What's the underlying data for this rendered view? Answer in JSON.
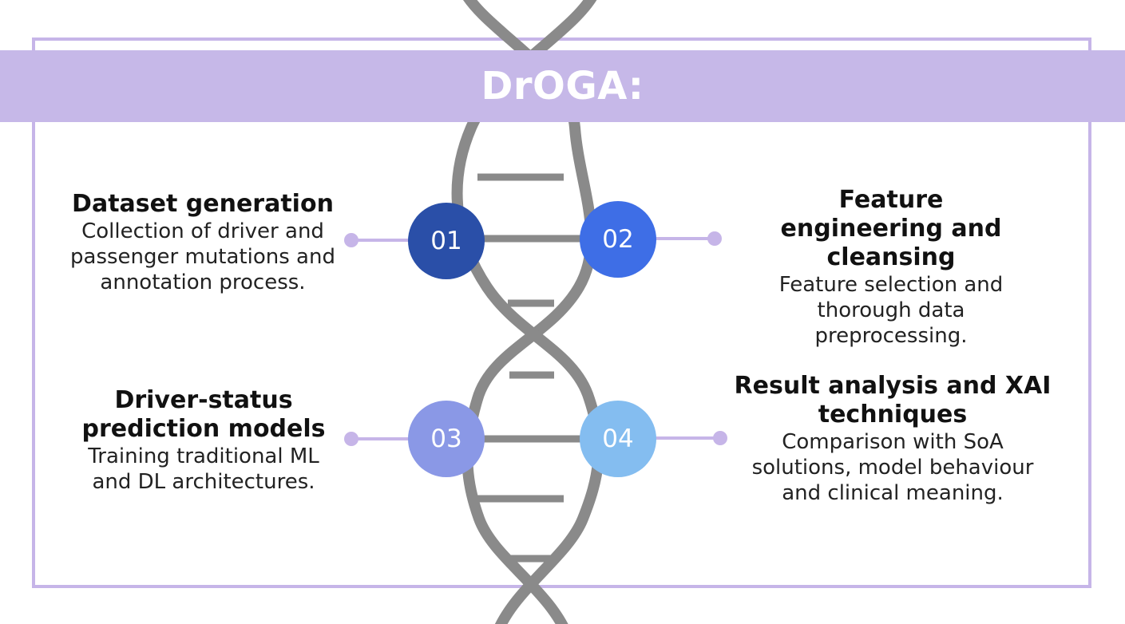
{
  "title": "DrOGA:",
  "colors": {
    "frame": "#c6b5e8",
    "banner": "#c6b8e8",
    "helix": "#8a8a8a",
    "step_01": "#2a4fa8",
    "step_02": "#3e6ee6",
    "step_03": "#8a98e6",
    "step_04": "#84bdf0"
  },
  "steps": [
    {
      "number": "01",
      "heading": "Dataset generation",
      "description": "Collection of driver and passenger mutations and annotation process."
    },
    {
      "number": "02",
      "heading": "Feature engineering and cleansing",
      "description": "Feature selection and thorough data preprocessing."
    },
    {
      "number": "03",
      "heading": "Driver-status prediction models",
      "description": "Training traditional ML and DL architectures."
    },
    {
      "number": "04",
      "heading": "Result analysis and XAI techniques",
      "description": "Comparison with SoA solutions, model behaviour and clinical meaning."
    }
  ],
  "icons": [
    "dna-helix-icon"
  ]
}
